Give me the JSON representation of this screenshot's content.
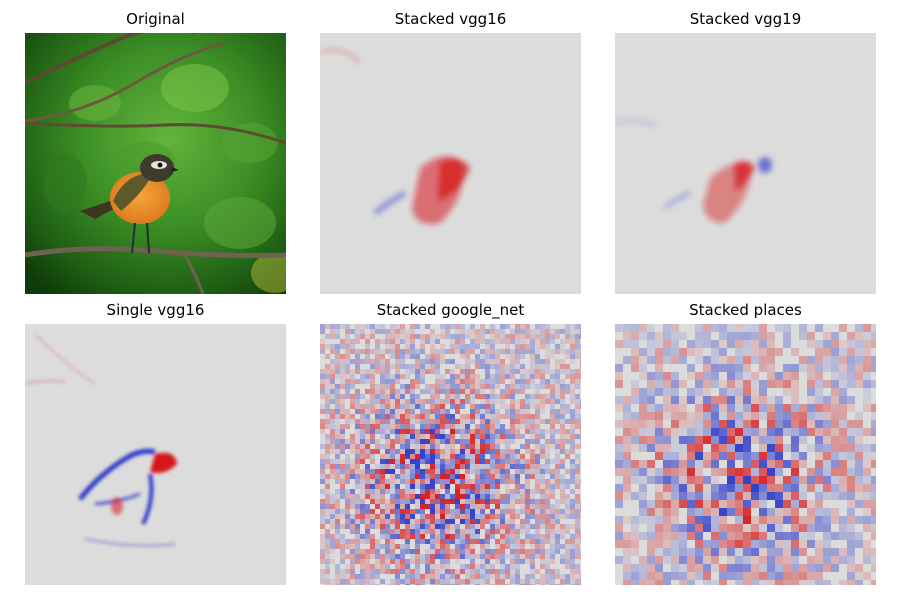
{
  "figure": {
    "panels": [
      {
        "id": "original",
        "title": "Original",
        "kind": "photo",
        "subject": "bird-on-branch"
      },
      {
        "id": "stacked-vgg16",
        "title": "Stacked vgg16",
        "kind": "heatmap"
      },
      {
        "id": "stacked-vgg19",
        "title": "Stacked vgg19",
        "kind": "heatmap"
      },
      {
        "id": "single-vgg16",
        "title": "Single vgg16",
        "kind": "heatmap"
      },
      {
        "id": "stacked-google-net",
        "title": "Stacked google_net",
        "kind": "heatmap"
      },
      {
        "id": "stacked-places",
        "title": "Stacked places",
        "kind": "heatmap"
      }
    ],
    "colors": {
      "positive": "#d7191c",
      "negative": "#2c39c8",
      "neutral": "#dcdcdc",
      "leaf_green": "#3f8f26",
      "bird_orange": "#e8962a"
    }
  }
}
